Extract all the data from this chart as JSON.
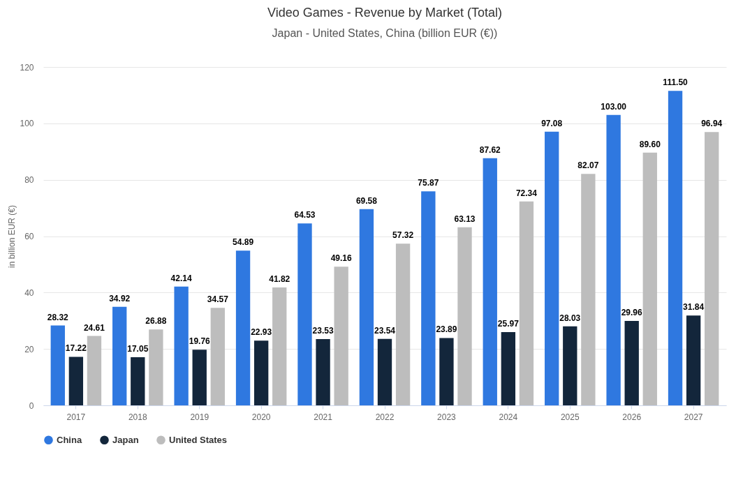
{
  "chart_data": {
    "type": "bar",
    "title": "Video Games - Revenue by Market (Total)",
    "subtitle": "Japan - United States, China (billion EUR (€))",
    "ylabel": "in billion EUR (€)",
    "categories": [
      "2017",
      "2018",
      "2019",
      "2020",
      "2021",
      "2022",
      "2023",
      "2024",
      "2025",
      "2026",
      "2027"
    ],
    "series": [
      {
        "name": "China",
        "color": "#2f78e0",
        "values": [
          28.32,
          34.92,
          42.14,
          54.89,
          64.53,
          69.58,
          75.87,
          87.62,
          97.08,
          103.0,
          111.5
        ],
        "value_labels": [
          "28.32",
          "34.92",
          "42.14",
          "54.89",
          "64.53",
          "69.58",
          "75.87",
          "87.62",
          "97.08",
          "103.00",
          "111.50"
        ]
      },
      {
        "name": "Japan",
        "color": "#13263b",
        "values": [
          17.22,
          17.05,
          19.76,
          22.93,
          23.53,
          23.54,
          23.89,
          25.97,
          28.03,
          29.96,
          31.84
        ],
        "value_labels": [
          "17.22",
          "17.05",
          "19.76",
          "22.93",
          "23.53",
          "23.54",
          "23.89",
          "25.97",
          "28.03",
          "29.96",
          "31.84"
        ]
      },
      {
        "name": "United States",
        "color": "#bdbdbd",
        "values": [
          24.61,
          26.88,
          34.57,
          41.82,
          49.16,
          57.32,
          63.13,
          72.34,
          82.07,
          89.6,
          96.94
        ],
        "value_labels": [
          "24.61",
          "26.88",
          "34.57",
          "41.82",
          "49.16",
          "57.32",
          "63.13",
          "72.34",
          "82.07",
          "89.60",
          "96.94"
        ]
      }
    ],
    "ylim": [
      0,
      120
    ],
    "yticks": [
      0,
      20,
      40,
      60,
      80,
      100,
      120
    ],
    "grid": "y",
    "legend": "bottom"
  }
}
